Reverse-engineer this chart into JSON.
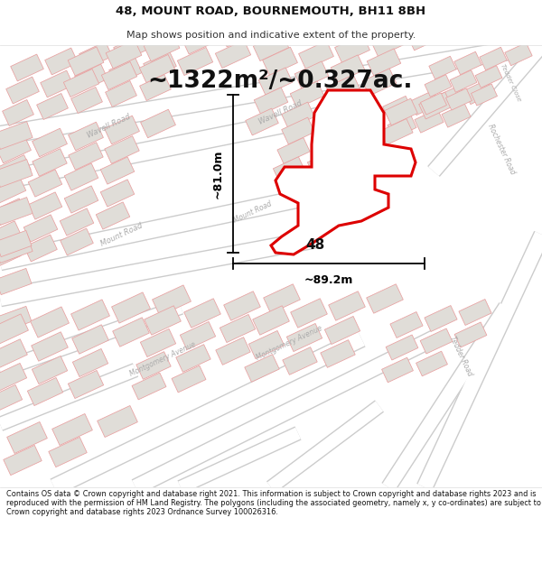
{
  "title_line1": "48, MOUNT ROAD, BOURNEMOUTH, BH11 8BH",
  "title_line2": "Map shows position and indicative extent of the property.",
  "area_text": "~1322m²/~0.327ac.",
  "dimension_h": "~81.0m",
  "dimension_w": "~89.2m",
  "label_number": "48",
  "footer_text": "Contains OS data © Crown copyright and database right 2021. This information is subject to Crown copyright and database rights 2023 and is reproduced with the permission of HM Land Registry. The polygons (including the associated geometry, namely x, y co-ordinates) are subject to Crown copyright and database rights 2023 Ordnance Survey 100026316.",
  "map_bg": "#f5f3f0",
  "title_bg": "#ffffff",
  "footer_bg": "#ffffff",
  "building_fill": "#e0ddd8",
  "building_outline": "#e8a0a0",
  "road_fill": "#ffffff",
  "road_label_color": "#aaaaaa",
  "plot_color": "#dd0000",
  "dim_color": "#000000",
  "title_color": "#111111",
  "subtitle_color": "#333333",
  "number_color": "#111111",
  "area_color": "#111111"
}
